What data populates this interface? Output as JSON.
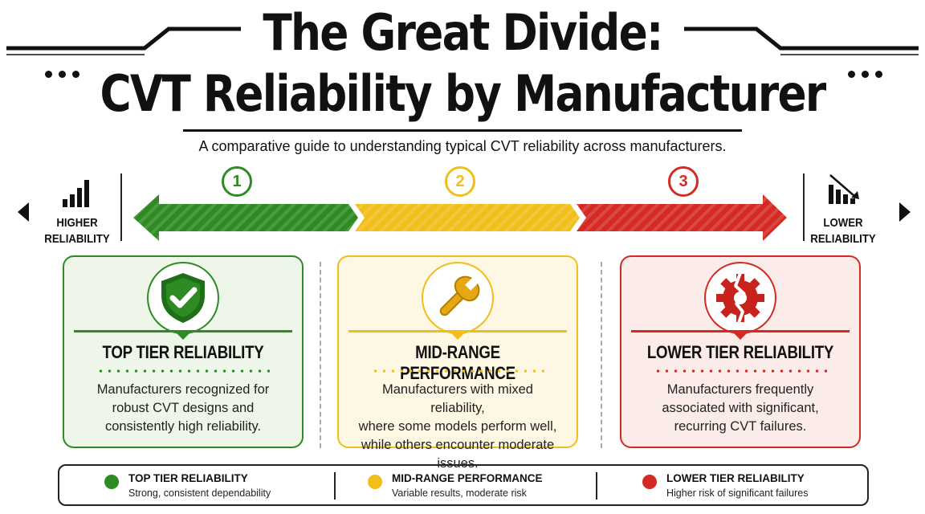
{
  "header": {
    "title_line1": "The Great Divide:",
    "title_line2": "CVT Reliability by Manufacturer",
    "subtitle": "A comparative guide to understanding typical CVT reliability across manufacturers."
  },
  "scale": {
    "left_label_line1": "HIGHER",
    "left_label_line2": "RELIABILITY",
    "right_label_line1": "LOWER",
    "right_label_line2": "RELIABILITY",
    "left_icon": "bar-chart-up-icon",
    "right_icon": "bar-chart-down-icon",
    "steps": [
      {
        "number": "1",
        "color": "#2e8b23"
      },
      {
        "number": "2",
        "color": "#f2be1a"
      },
      {
        "number": "3",
        "color": "#d42a23"
      }
    ]
  },
  "cards": [
    {
      "title": "TOP TIER RELIABILITY",
      "desc_line1": "Manufacturers recognized for",
      "desc_line2": "robust CVT designs and",
      "desc_line3": "consistently high reliability.",
      "icon": "shield-check-icon",
      "color": "#2e8b23",
      "bg": "#eef6ea"
    },
    {
      "title": "MID-RANGE PERFORMANCE",
      "desc_line1": "Manufacturers with mixed reliability,",
      "desc_line2": "where some models perform well,",
      "desc_line3": "while others encounter moderate issues.",
      "icon": "wrench-icon",
      "color": "#f2be1a",
      "bg": "#fdf7e4"
    },
    {
      "title": "LOWER TIER RELIABILITY",
      "desc_line1": "Manufacturers frequently",
      "desc_line2": "associated with significant,",
      "desc_line3": "recurring CVT failures.",
      "icon": "broken-gear-icon",
      "color": "#d42a23",
      "bg": "#fbecea"
    }
  ],
  "legend": [
    {
      "title": "TOP TIER RELIABILITY",
      "desc": "Strong, consistent dependability",
      "color": "#2e8b23"
    },
    {
      "title": "MID-RANGE PERFORMANCE",
      "desc": "Variable results, moderate risk",
      "color": "#f2be1a"
    },
    {
      "title": "LOWER TIER RELIABILITY",
      "desc": "Higher risk of significant failures",
      "color": "#d42a23"
    }
  ]
}
